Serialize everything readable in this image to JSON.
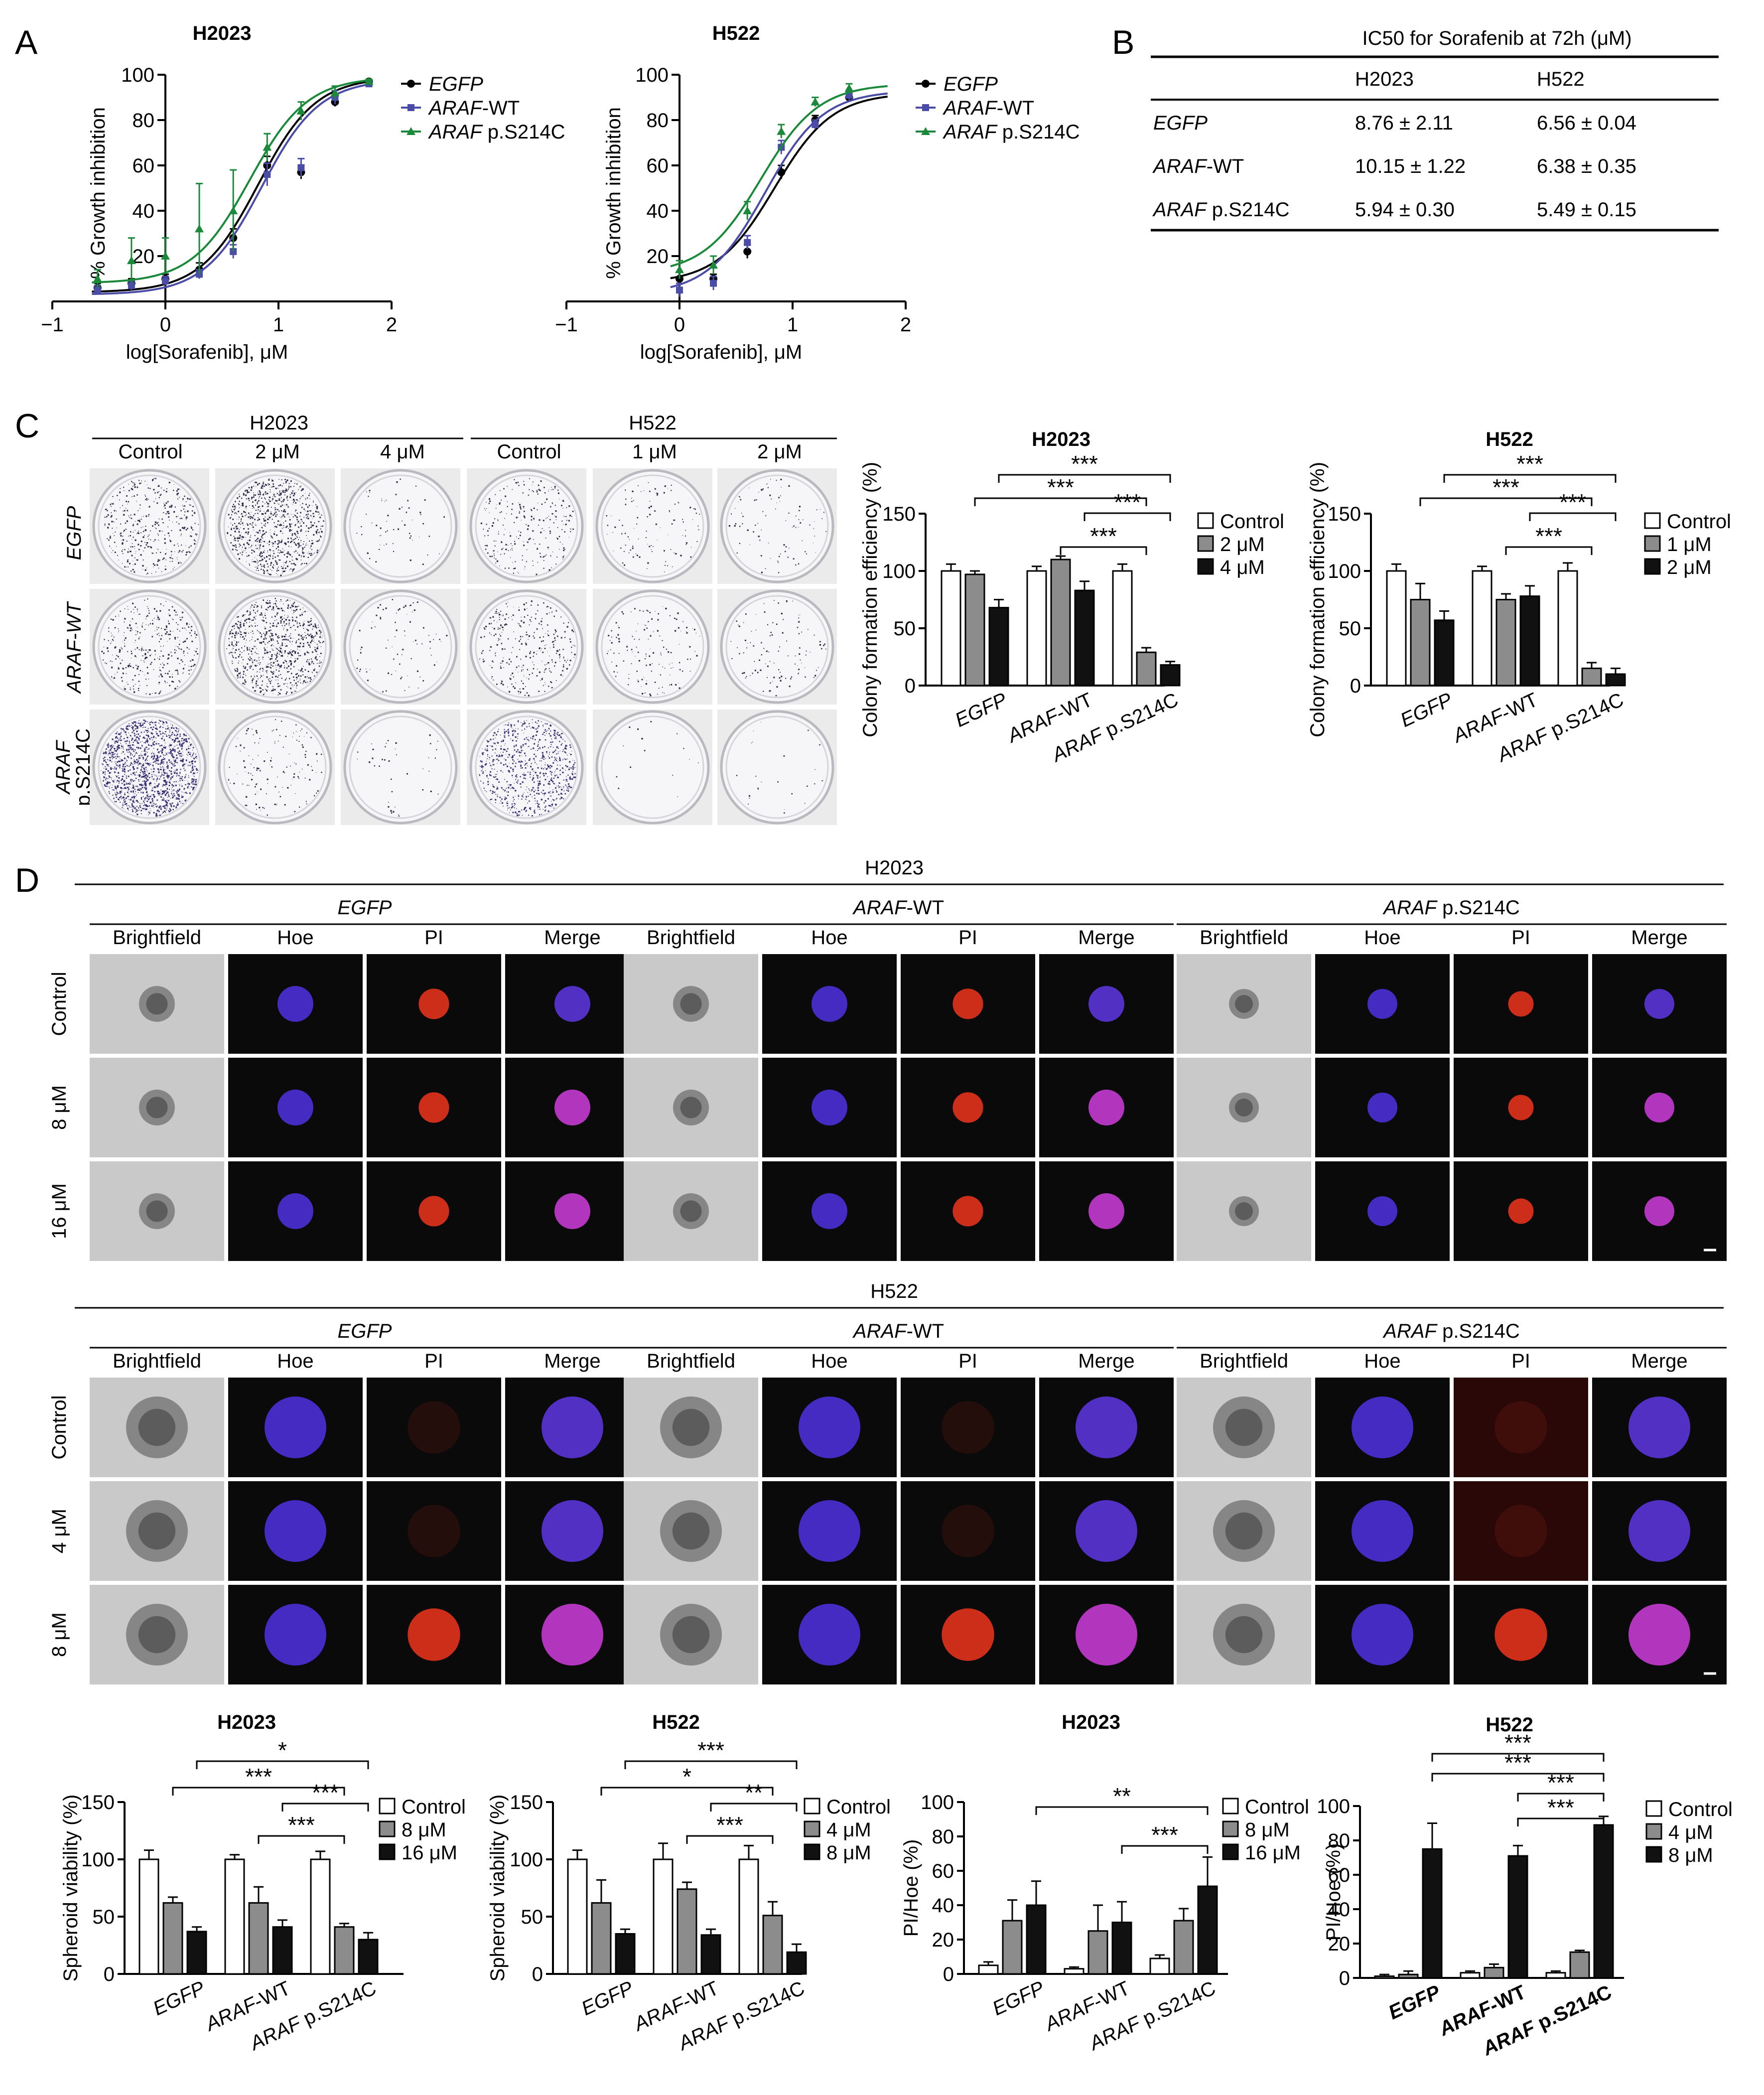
{
  "panel_letters": {
    "a": "A",
    "b": "B",
    "c": "C",
    "d": "D"
  },
  "curve_legend": [
    {
      "gene": "EGFP",
      "suffix": "",
      "color": "#000000",
      "marker": "circle"
    },
    {
      "gene": "ARAF",
      "suffix": "-WT",
      "color": "#4b4ba8",
      "marker": "square"
    },
    {
      "gene": "ARAF",
      "suffix": " p.S214C",
      "color": "#1a8a3a",
      "marker": "triangle"
    }
  ],
  "table_b": {
    "title": "IC50 for Sorafenib at 72h (μM)",
    "columns": [
      "H2023",
      "H522"
    ],
    "rows": [
      {
        "gene": "EGFP",
        "suffix": "",
        "values": [
          "8.76 ± 2.11",
          "6.56 ± 0.04"
        ]
      },
      {
        "gene": "ARAF",
        "suffix": "-WT",
        "values": [
          "10.15 ± 1.22",
          "6.38 ± 0.35"
        ]
      },
      {
        "gene": "ARAF",
        "suffix": " p.S214C",
        "values": [
          "5.94 ± 0.30",
          "5.49 ± 0.15"
        ]
      }
    ]
  },
  "plates_c": {
    "group1": {
      "title": "H2023",
      "cols": [
        "Control",
        "2 μM",
        "4 μM"
      ]
    },
    "group2": {
      "title": "H522",
      "cols": [
        "Control",
        "1 μM",
        "2 μM"
      ]
    },
    "row_labels": [
      "EGFP",
      "ARAF-WT",
      "ARAF p.S214C"
    ]
  },
  "images_d": {
    "section1_title": "H2023",
    "section2_title": "H522",
    "groups": [
      {
        "gene": "EGFP",
        "suffix": ""
      },
      {
        "gene": "ARAF",
        "suffix": "-WT"
      },
      {
        "gene": "ARAF",
        "suffix": " p.S214C"
      }
    ],
    "channels": [
      "Brightfield",
      "Hoe",
      "PI",
      "Merge"
    ],
    "section1_rows": [
      "Control",
      "8 μM",
      "16 μM"
    ],
    "section2_rows": [
      "Control",
      "4 μM",
      "8 μM"
    ]
  },
  "colors": {
    "grey_bar": "#8c8c8c",
    "dark_bar": "#111111",
    "plate_bg": "#ebebeb",
    "micro_bg": "#0a0a0a",
    "bf_bg": "#c9c9c9"
  },
  "chart_data": [
    {
      "id": "a1",
      "type": "scatter",
      "title": "H2023",
      "xlabel": "log[Sorafenib], μM",
      "ylabel": "% Growth inhibition",
      "xlim": [
        -1,
        2
      ],
      "ylim": [
        0,
        100
      ],
      "xticks": [
        "−1",
        "0",
        "1",
        "2"
      ],
      "yticks": [
        "20",
        "40",
        "60",
        "80",
        "100"
      ],
      "legend_position": "right",
      "series": [
        {
          "name": "EGFP",
          "x": [
            -0.6,
            -0.3,
            0.0,
            0.3,
            0.6,
            0.9,
            1.2,
            1.5,
            1.8
          ],
          "y": [
            6,
            8,
            10,
            14,
            28,
            60,
            57,
            88,
            97
          ],
          "err": [
            2,
            2,
            2,
            3,
            4,
            4,
            3,
            2,
            1
          ]
        },
        {
          "name": "ARAF-WT",
          "x": [
            -0.6,
            -0.3,
            0.0,
            0.3,
            0.6,
            0.9,
            1.2,
            1.5,
            1.8
          ],
          "y": [
            5,
            7,
            9,
            12,
            22,
            56,
            59,
            90,
            96
          ],
          "err": [
            2,
            2,
            2,
            2,
            3,
            5,
            4,
            3,
            1
          ]
        },
        {
          "name": "ARAF p.S214C",
          "x": [
            -0.6,
            -0.3,
            0.0,
            0.3,
            0.6,
            0.9,
            1.2,
            1.5,
            1.8
          ],
          "y": [
            10,
            18,
            20,
            32,
            40,
            68,
            84,
            92,
            97
          ],
          "err": [
            4,
            10,
            8,
            20,
            18,
            6,
            4,
            3,
            1
          ]
        }
      ]
    },
    {
      "id": "a2",
      "type": "scatter",
      "title": "H522",
      "xlabel": "log[Sorafenib], μM",
      "ylabel": "% Growth inhibition",
      "xlim": [
        -1,
        2
      ],
      "ylim": [
        0,
        100
      ],
      "xticks": [
        "−1",
        "0",
        "1",
        "2"
      ],
      "yticks": [
        "20",
        "40",
        "60",
        "80",
        "100"
      ],
      "legend_position": "right",
      "series": [
        {
          "name": "EGFP",
          "x": [
            0.0,
            0.3,
            0.6,
            0.9,
            1.2,
            1.5
          ],
          "y": [
            10,
            10,
            22,
            57,
            80,
            90
          ],
          "err": [
            3,
            2,
            3,
            3,
            2,
            2
          ]
        },
        {
          "name": "ARAF-WT",
          "x": [
            0.0,
            0.3,
            0.6,
            0.9,
            1.2,
            1.5
          ],
          "y": [
            5,
            8,
            26,
            68,
            78,
            91
          ],
          "err": [
            3,
            3,
            3,
            3,
            2,
            2
          ]
        },
        {
          "name": "ARAF p.S214C",
          "x": [
            0.0,
            0.3,
            0.6,
            0.9,
            1.2,
            1.5
          ],
          "y": [
            14,
            16,
            40,
            75,
            88,
            94
          ],
          "err": [
            4,
            4,
            4,
            3,
            2,
            2
          ]
        }
      ]
    },
    {
      "id": "c1",
      "type": "bar",
      "title": "H2023",
      "ylabel": "Colony formation efficiency (%)",
      "ylim": [
        0,
        150
      ],
      "yticks": [
        "0",
        "50",
        "100",
        "150"
      ],
      "categories": [
        "EGFP",
        "ARAF-WT",
        "ARAF p.S214C"
      ],
      "legend_position": "right",
      "series": [
        {
          "name": "Control",
          "values": [
            100,
            100,
            100
          ],
          "err": [
            6,
            4,
            6
          ]
        },
        {
          "name": "2 μM",
          "values": [
            97,
            110,
            29
          ],
          "err": [
            3,
            3,
            4
          ]
        },
        {
          "name": "4 μM",
          "values": [
            68,
            83,
            18
          ],
          "err": [
            7,
            8,
            3
          ]
        }
      ],
      "sig": [
        {
          "from": [
            0,
            2
          ],
          "to": [
            2,
            2
          ],
          "label": "***"
        },
        {
          "from": [
            0,
            1
          ],
          "to": [
            2,
            1
          ],
          "label": "***"
        },
        {
          "from": [
            1,
            1
          ],
          "to": [
            2,
            1
          ],
          "label": "***"
        },
        {
          "from": [
            1,
            2
          ],
          "to": [
            2,
            2
          ],
          "label": "***"
        }
      ]
    },
    {
      "id": "c2",
      "type": "bar",
      "title": "H522",
      "ylabel": "Colony formation efficiency (%)",
      "ylim": [
        0,
        150
      ],
      "yticks": [
        "0",
        "50",
        "100",
        "150"
      ],
      "categories": [
        "EGFP",
        "ARAF-WT",
        "ARAF p.S214C"
      ],
      "legend_position": "right",
      "series": [
        {
          "name": "Control",
          "values": [
            100,
            100,
            100
          ],
          "err": [
            6,
            4,
            7
          ]
        },
        {
          "name": "1 μM",
          "values": [
            75,
            75,
            15
          ],
          "err": [
            14,
            5,
            5
          ]
        },
        {
          "name": "2 μM",
          "values": [
            57,
            78,
            10
          ],
          "err": [
            8,
            9,
            5
          ]
        }
      ],
      "sig": [
        {
          "from": [
            0,
            2
          ],
          "to": [
            2,
            2
          ],
          "label": "***"
        },
        {
          "from": [
            0,
            1
          ],
          "to": [
            2,
            1
          ],
          "label": "***"
        },
        {
          "from": [
            1,
            1
          ],
          "to": [
            2,
            1
          ],
          "label": "***"
        },
        {
          "from": [
            1,
            2
          ],
          "to": [
            2,
            2
          ],
          "label": "***"
        }
      ]
    },
    {
      "id": "d1",
      "type": "bar",
      "title": "H2023",
      "ylabel": "Spheroid viability (%)",
      "ylim": [
        0,
        150
      ],
      "yticks": [
        "0",
        "50",
        "100",
        "150"
      ],
      "categories": [
        "EGFP",
        "ARAF-WT",
        "ARAF p.S214C"
      ],
      "legend_position": "right",
      "series": [
        {
          "name": "Control",
          "values": [
            100,
            100,
            100
          ],
          "err": [
            8,
            4,
            7
          ]
        },
        {
          "name": "8 μM",
          "values": [
            62,
            62,
            41
          ],
          "err": [
            5,
            14,
            3
          ]
        },
        {
          "name": "16 μM",
          "values": [
            37,
            41,
            30
          ],
          "err": [
            4,
            6,
            6
          ]
        }
      ],
      "sig": [
        {
          "from": [
            0,
            2
          ],
          "to": [
            2,
            2
          ],
          "label": "*"
        },
        {
          "from": [
            0,
            1
          ],
          "to": [
            2,
            1
          ],
          "label": "***"
        },
        {
          "from": [
            1,
            1
          ],
          "to": [
            2,
            1
          ],
          "label": "***"
        },
        {
          "from": [
            1,
            2
          ],
          "to": [
            2,
            2
          ],
          "label": "***"
        }
      ]
    },
    {
      "id": "d2",
      "type": "bar",
      "title": "H522",
      "ylabel": "Spheroid viability (%)",
      "ylim": [
        0,
        150
      ],
      "yticks": [
        "0",
        "50",
        "100",
        "150"
      ],
      "categories": [
        "EGFP",
        "ARAF-WT",
        "ARAF p.S214C"
      ],
      "legend_position": "right",
      "series": [
        {
          "name": "Control",
          "values": [
            100,
            100,
            100
          ],
          "err": [
            8,
            14,
            12
          ]
        },
        {
          "name": "4 μM",
          "values": [
            62,
            74,
            51
          ],
          "err": [
            20,
            6,
            12
          ]
        },
        {
          "name": "8 μM",
          "values": [
            35,
            34,
            19
          ],
          "err": [
            4,
            5,
            7
          ]
        }
      ],
      "sig": [
        {
          "from": [
            0,
            2
          ],
          "to": [
            2,
            2
          ],
          "label": "***"
        },
        {
          "from": [
            0,
            1
          ],
          "to": [
            2,
            1
          ],
          "label": "*"
        },
        {
          "from": [
            1,
            1
          ],
          "to": [
            2,
            1
          ],
          "label": "***"
        },
        {
          "from": [
            1,
            2
          ],
          "to": [
            2,
            2
          ],
          "label": "**"
        }
      ]
    },
    {
      "id": "d3",
      "type": "bar",
      "title": "H2023",
      "ylabel": "PI/Hoe (%)",
      "ylim": [
        0,
        100
      ],
      "yticks": [
        "0",
        "20",
        "40",
        "60",
        "80",
        "100"
      ],
      "categories": [
        "EGFP",
        "ARAF-WT",
        "ARAF p.S214C"
      ],
      "legend_position": "right",
      "series": [
        {
          "name": "Control",
          "values": [
            5,
            3,
            9
          ],
          "err": [
            2,
            1,
            2
          ]
        },
        {
          "name": "8 μM",
          "values": [
            31,
            25,
            31
          ],
          "err": [
            12,
            15,
            7
          ]
        },
        {
          "name": "16 μM",
          "values": [
            40,
            30,
            51
          ],
          "err": [
            14,
            12,
            17
          ]
        }
      ],
      "sig": [
        {
          "from": [
            0,
            2
          ],
          "to": [
            2,
            2
          ],
          "label": "**"
        },
        {
          "from": [
            1,
            2
          ],
          "to": [
            2,
            2
          ],
          "label": "***"
        }
      ]
    },
    {
      "id": "d4",
      "type": "bar",
      "title": "H522",
      "ylabel": "PI/Hoe (%)",
      "ylim": [
        0,
        100
      ],
      "yticks": [
        "0",
        "20",
        "40",
        "60",
        "80",
        "100"
      ],
      "categories": [
        "EGFP",
        "ARAF-WT",
        "ARAF p.S214C"
      ],
      "legend_position": "right",
      "bold_categories": true,
      "series": [
        {
          "name": "Control",
          "values": [
            1,
            3,
            3
          ],
          "err": [
            1,
            1,
            1
          ]
        },
        {
          "name": "4 μM",
          "values": [
            2,
            6,
            15
          ],
          "err": [
            2,
            2,
            1
          ]
        },
        {
          "name": "8 μM",
          "values": [
            75,
            71,
            89
          ],
          "err": [
            15,
            6,
            5
          ]
        }
      ],
      "sig": [
        {
          "from": [
            0,
            2
          ],
          "to": [
            2,
            2
          ],
          "label": "***"
        },
        {
          "from": [
            0,
            2
          ],
          "to": [
            2,
            2
          ],
          "label": "***"
        },
        {
          "from": [
            1,
            2
          ],
          "to": [
            2,
            2
          ],
          "label": "***"
        },
        {
          "from": [
            1,
            2
          ],
          "to": [
            2,
            2
          ],
          "label": "***"
        }
      ]
    }
  ]
}
